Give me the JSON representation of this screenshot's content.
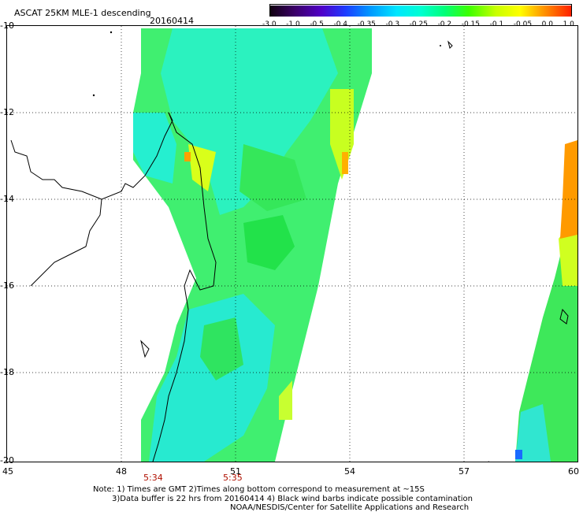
{
  "header": {
    "title": "ASCAT 25KM MLE-1 descending",
    "date": "20160414"
  },
  "colorbar": {
    "labels": [
      "-3.0",
      "-1.0",
      "-0.5",
      "-0.4",
      "-0.35",
      "-0.3",
      "-0.25",
      "-0.2",
      "-0.15",
      "-0.1",
      "-0.05",
      "0.0",
      "1.0"
    ],
    "colors": [
      "#1a0018",
      "#4b0078",
      "#2a2aff",
      "#0078ff",
      "#00b4ff",
      "#00e6ff",
      "#00ffd2",
      "#00ff64",
      "#3cff00",
      "#b4ff00",
      "#ffff00",
      "#ffaa00",
      "#ff3c00",
      "#ff0000"
    ]
  },
  "axes": {
    "y_labels": [
      "-10",
      "-12",
      "-14",
      "-16",
      "-18",
      "-20"
    ],
    "x_labels": [
      "45",
      "48",
      "51",
      "54",
      "57",
      "60"
    ]
  },
  "times": [
    "5:34",
    "5:35"
  ],
  "notes": {
    "line1": "Note: 1) Times are GMT 2)Times along bottom correspond to measurement at ~15S",
    "line2": "3)Data buffer is 22 hrs from 20160414 4) Black wind barbs indicate possible contamination",
    "line3": "NOAA/NESDIS/Center for Satellite Applications and Research"
  }
}
